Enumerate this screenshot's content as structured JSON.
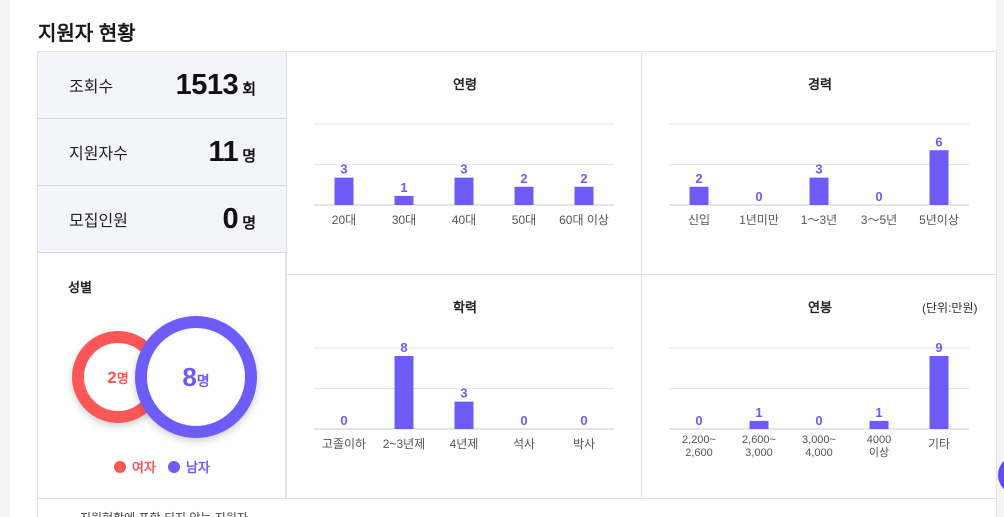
{
  "page_title": "지원자 현황",
  "stats": [
    {
      "label": "조회수",
      "value": "1513",
      "unit": "회"
    },
    {
      "label": "지원자수",
      "value": "11",
      "unit": "명"
    },
    {
      "label": "모집인원",
      "value": "0",
      "unit": "명"
    }
  ],
  "gender": {
    "title": "성별",
    "female": {
      "count": "2",
      "unit": "명",
      "legend": "여자",
      "color": "#fc5656"
    },
    "male": {
      "count": "8",
      "unit": "명",
      "legend": "남자",
      "color": "#6e5bfa"
    }
  },
  "colors": {
    "bar": "#6e5bfa",
    "value_label": "#6e5bfa"
  },
  "charts_text": {
    "age": {
      "title": "연령"
    },
    "career": {
      "title": "경력"
    },
    "education": {
      "title": "학력"
    },
    "salary": {
      "title": "연봉",
      "unit_note": "(단위:만원)"
    }
  },
  "chart_data": [
    {
      "type": "bar",
      "title": "연령",
      "categories": [
        "20대",
        "30대",
        "40대",
        "50대",
        "60대 이상"
      ],
      "values": [
        3,
        1,
        3,
        2,
        2
      ],
      "ylim": [
        0,
        8
      ]
    },
    {
      "type": "bar",
      "title": "경력",
      "categories": [
        "신입",
        "1년미만",
        "1～3년",
        "3～5년",
        "5년이상"
      ],
      "values": [
        2,
        0,
        3,
        0,
        6
      ],
      "ylim": [
        0,
        8
      ]
    },
    {
      "type": "bar",
      "title": "학력",
      "categories": [
        "고졸이하",
        "2~3년제",
        "4년제",
        "석사",
        "박사"
      ],
      "values": [
        0,
        8,
        3,
        0,
        0
      ],
      "ylim": [
        0,
        8
      ]
    },
    {
      "type": "bar",
      "title": "연봉",
      "categories": [
        [
          "2,200~",
          "2,600"
        ],
        [
          "2,600~",
          "3,000"
        ],
        [
          "3,000~",
          "4,000"
        ],
        [
          "4000",
          "이상"
        ],
        [
          "기타"
        ]
      ],
      "values": [
        0,
        1,
        0,
        1,
        9
      ],
      "ylim": [
        0,
        9
      ]
    }
  ],
  "footnote": "지원현황에 포함 되지 않는 지원자"
}
